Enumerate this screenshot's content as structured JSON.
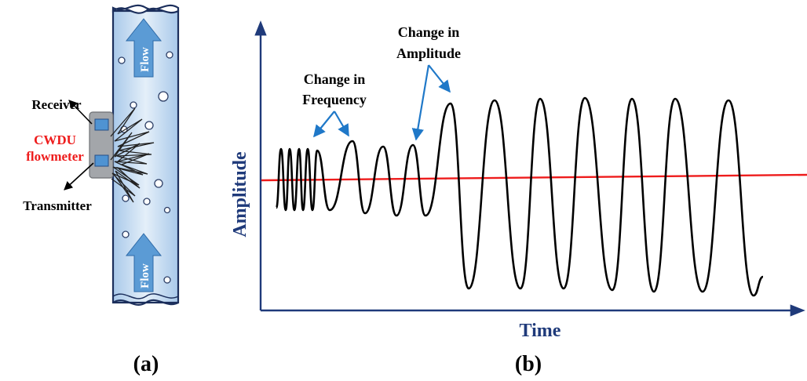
{
  "panel_a": {
    "label": "(a)",
    "receiver": "Receiver",
    "device_line1": "CWDU",
    "device_line2": "flowmeter",
    "transmitter": "Transmitter",
    "flow_top": "Flow",
    "flow_bottom": "Flow"
  },
  "panel_b": {
    "label": "(b)",
    "ylabel": "Amplitude",
    "xlabel": "Time",
    "annotation_frequency_line1": "Change in",
    "annotation_frequency_line2": "Frequency",
    "annotation_amplitude_line1": "Change in",
    "annotation_amplitude_line2": "Amplitude"
  },
  "colors": {
    "axis": "#1f3a7a",
    "baseline": "#ee1c1c",
    "wave": "#000000",
    "annotation_arrow": "#1f78c8",
    "device_label": "#ee1c1c",
    "pipe_fill": "#bcd6ef",
    "flow_arrow": "#5b9bd5",
    "sensor": "#4f93d2"
  }
}
